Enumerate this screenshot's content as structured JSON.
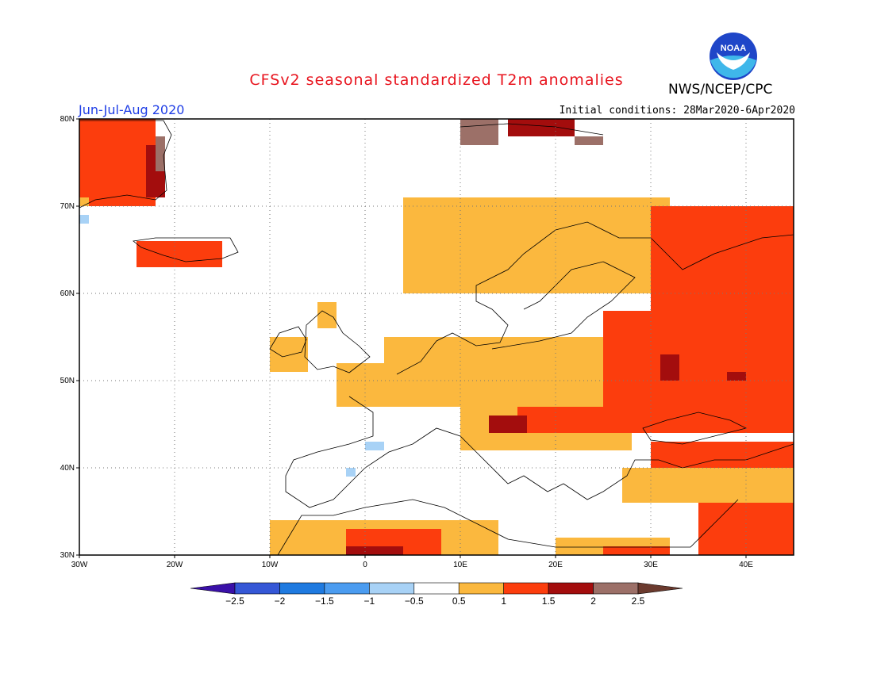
{
  "title": "CFSv2 seasonal standardized T2m anomalies",
  "period": "Jun-Jul-Aug 2020",
  "initial_conditions": "Initial conditions: 28Mar2020-6Apr2020",
  "agency": "NWS/NCEP/CPC",
  "logo_icon": "noaa-logo-icon",
  "map": {
    "lon_range": [
      -30,
      45
    ],
    "lat_range": [
      30,
      80
    ],
    "x_ticks": [
      {
        "lon": -30,
        "label": "30W"
      },
      {
        "lon": -20,
        "label": "20W"
      },
      {
        "lon": -10,
        "label": "10W"
      },
      {
        "lon": 0,
        "label": "0"
      },
      {
        "lon": 10,
        "label": "10E"
      },
      {
        "lon": 20,
        "label": "20E"
      },
      {
        "lon": 30,
        "label": "30E"
      },
      {
        "lon": 40,
        "label": "40E"
      }
    ],
    "y_ticks": [
      {
        "lat": 80,
        "label": "80N"
      },
      {
        "lat": 70,
        "label": "70N"
      },
      {
        "lat": 60,
        "label": "60N"
      },
      {
        "lat": 50,
        "label": "50N"
      },
      {
        "lat": 40,
        "label": "40N"
      },
      {
        "lat": 30,
        "label": "30N"
      }
    ],
    "grid": "dotted"
  },
  "colorbar": {
    "labels": [
      "-2.5",
      "-2",
      "-1.5",
      "-1",
      "-0.5",
      "0.5",
      "1",
      "1.5",
      "2",
      "2.5"
    ],
    "colors": [
      "#3a10a8",
      "#3557d6",
      "#1f7ae0",
      "#4b9cf0",
      "#a8d2f6",
      "#ffffff",
      "#fbb83e",
      "#fc3d0d",
      "#a30d0d",
      "#9c7068",
      "#6b3a2e"
    ]
  },
  "legend_classes": {
    "1": "#fbb83e",
    "2": "#fc3d0d",
    "3": "#a30d0d",
    "4": "#9c7068",
    "-1": "#a8d2f6"
  },
  "anomaly_regions": [
    {
      "level": 2,
      "lon": [
        -30,
        -22
      ],
      "lat": [
        70,
        80
      ]
    },
    {
      "level": 3,
      "lon": [
        -23,
        -21
      ],
      "lat": [
        71,
        77
      ]
    },
    {
      "level": 4,
      "lon": [
        -22,
        -21
      ],
      "lat": [
        74,
        78
      ]
    },
    {
      "level": -1,
      "lon": [
        -30,
        -29
      ],
      "lat": [
        68,
        69
      ]
    },
    {
      "level": 1,
      "lon": [
        -30,
        -29
      ],
      "lat": [
        70,
        71
      ]
    },
    {
      "level": 2,
      "lon": [
        -24,
        -15
      ],
      "lat": [
        63,
        66
      ]
    },
    {
      "level": 1,
      "lon": [
        -10,
        -6
      ],
      "lat": [
        51,
        55
      ]
    },
    {
      "level": 1,
      "lon": [
        -5,
        -3
      ],
      "lat": [
        56,
        59
      ]
    },
    {
      "level": 4,
      "lon": [
        10,
        14
      ],
      "lat": [
        77,
        80
      ]
    },
    {
      "level": 3,
      "lon": [
        15,
        22
      ],
      "lat": [
        78,
        80
      ]
    },
    {
      "level": 4,
      "lon": [
        22,
        25
      ],
      "lat": [
        77,
        78
      ]
    },
    {
      "level": 1,
      "lon": [
        4,
        32
      ],
      "lat": [
        60,
        71
      ]
    },
    {
      "level": 2,
      "lon": [
        30,
        45
      ],
      "lat": [
        58,
        70
      ]
    },
    {
      "level": 1,
      "lon": [
        2,
        25
      ],
      "lat": [
        48,
        55
      ]
    },
    {
      "level": 1,
      "lon": [
        -3,
        10
      ],
      "lat": [
        47,
        52
      ]
    },
    {
      "level": 1,
      "lon": [
        10,
        28
      ],
      "lat": [
        42,
        48
      ]
    },
    {
      "level": 2,
      "lon": [
        25,
        45
      ],
      "lat": [
        44,
        58
      ]
    },
    {
      "level": 3,
      "lon": [
        31,
        33
      ],
      "lat": [
        50,
        53
      ]
    },
    {
      "level": 3,
      "lon": [
        38,
        40
      ],
      "lat": [
        50,
        51
      ]
    },
    {
      "level": 2,
      "lon": [
        16,
        26
      ],
      "lat": [
        44,
        47
      ]
    },
    {
      "level": 3,
      "lon": [
        13,
        17
      ],
      "lat": [
        44,
        46
      ]
    },
    {
      "level": 2,
      "lon": [
        30,
        45
      ],
      "lat": [
        40,
        43
      ]
    },
    {
      "level": 1,
      "lon": [
        27,
        45
      ],
      "lat": [
        36,
        40
      ]
    },
    {
      "level": 2,
      "lon": [
        35,
        45
      ],
      "lat": [
        30,
        36
      ]
    },
    {
      "level": 1,
      "lon": [
        -10,
        14
      ],
      "lat": [
        30,
        34
      ]
    },
    {
      "level": 2,
      "lon": [
        -2,
        8
      ],
      "lat": [
        30,
        33
      ]
    },
    {
      "level": 3,
      "lon": [
        -2,
        4
      ],
      "lat": [
        30,
        31
      ]
    },
    {
      "level": 1,
      "lon": [
        20,
        32
      ],
      "lat": [
        30,
        32
      ]
    },
    {
      "level": 2,
      "lon": [
        25,
        32
      ],
      "lat": [
        30,
        31
      ]
    },
    {
      "level": -1,
      "lon": [
        0,
        2
      ],
      "lat": [
        42,
        43
      ]
    },
    {
      "level": -1,
      "lon": [
        -2,
        -1
      ],
      "lat": [
        39,
        40
      ]
    }
  ]
}
